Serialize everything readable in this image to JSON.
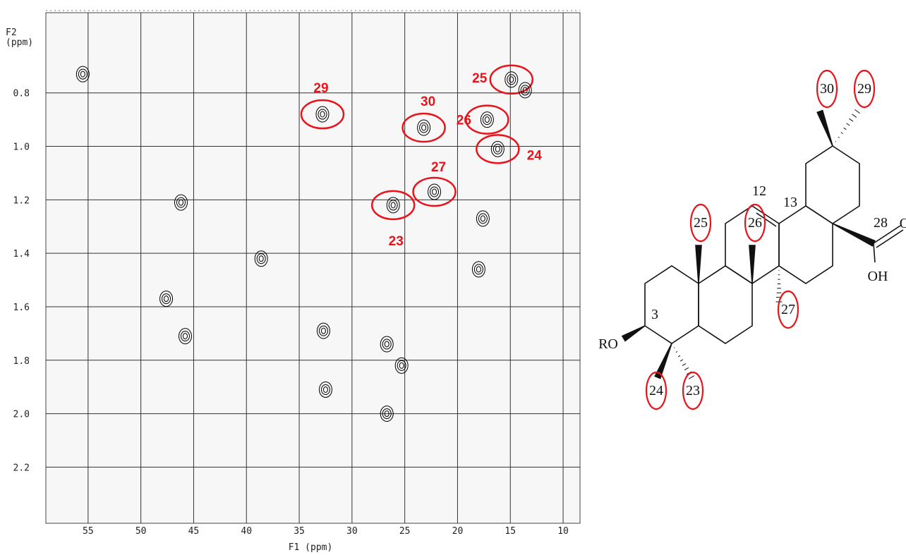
{
  "chart_data": {
    "type": "scatter",
    "x_label": "F1 (ppm)",
    "y_label_lines": [
      "F2",
      "(ppm)"
    ],
    "xlim": [
      59,
      8.4
    ],
    "ylim": [
      0.5,
      2.41
    ],
    "xticks": [
      55,
      50,
      45,
      40,
      35,
      30,
      25,
      20,
      15,
      10
    ],
    "yticks": [
      0.8,
      {
        "value": 1,
        "label": "1.0"
      },
      1.2,
      1.4,
      1.6,
      1.8,
      {
        "value": 2,
        "label": "2.0"
      },
      2.2
    ],
    "grid": true,
    "series": [
      {
        "color": "#000000",
        "highlight_color": "#e8141b",
        "labels": [
          "29",
          "30",
          "25",
          "26",
          "24",
          "27",
          "23"
        ],
        "x": [
          32.8,
          23.2,
          14.9,
          17.2,
          16.2,
          22.2,
          26.1
        ],
        "values": [
          0.88,
          0.93,
          0.75,
          0.9,
          1.01,
          1.17,
          1.22
        ]
      },
      {
        "color": "#000000",
        "x": [
          55.5,
          46.2,
          38.6,
          47.6,
          45.8,
          32.7,
          18.0,
          17.6,
          26.7,
          25.3,
          26.7,
          32.5,
          13.6
        ],
        "values": [
          0.73,
          1.21,
          1.42,
          1.57,
          1.71,
          1.69,
          1.46,
          1.27,
          1.74,
          1.82,
          2.0,
          1.91,
          0.79
        ]
      }
    ]
  },
  "structure": {
    "atom_labels": [
      "12",
      "13",
      "28",
      "3",
      "RO",
      "OH",
      "O"
    ],
    "methyl_labels": [
      "25",
      "26",
      "27",
      "24",
      "23",
      "30",
      "29"
    ],
    "highlight_color": "#e8141b"
  }
}
